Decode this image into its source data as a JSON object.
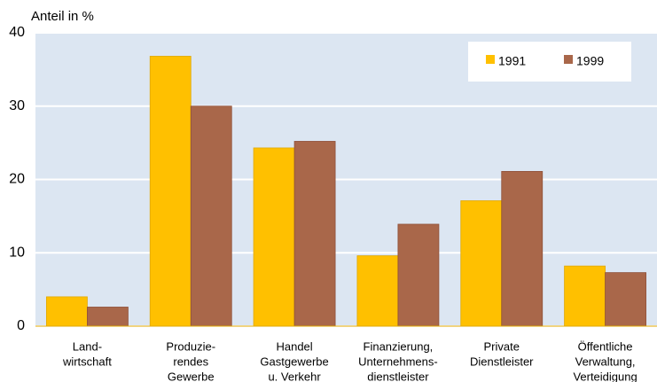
{
  "chart_data": {
    "type": "bar",
    "y_axis_label": "Anteil in %",
    "categories": [
      [
        "Land-",
        "wirtschaft"
      ],
      [
        "Produzie-",
        "rendes",
        "Gewerbe"
      ],
      [
        "Handel",
        "Gastgewerbe",
        "u. Verkehr"
      ],
      [
        "Finanzierung,",
        "Unternehmens-",
        "dienstleister"
      ],
      [
        "Private",
        "Dienstleister"
      ],
      [
        "Öffentliche",
        "Verwaltung,",
        "Verteidigung"
      ]
    ],
    "series": [
      {
        "name": "1991",
        "color": "#ffc000",
        "values": [
          4.0,
          36.8,
          24.3,
          9.6,
          17.1,
          8.2
        ]
      },
      {
        "name": "1999",
        "color": "#a9674a",
        "values": [
          2.6,
          30.0,
          25.2,
          13.9,
          21.1,
          7.3
        ]
      }
    ],
    "ylim": [
      0,
      40
    ],
    "yticks": [
      0,
      10,
      20,
      30,
      40
    ],
    "grid": true,
    "legend": "top-right"
  }
}
